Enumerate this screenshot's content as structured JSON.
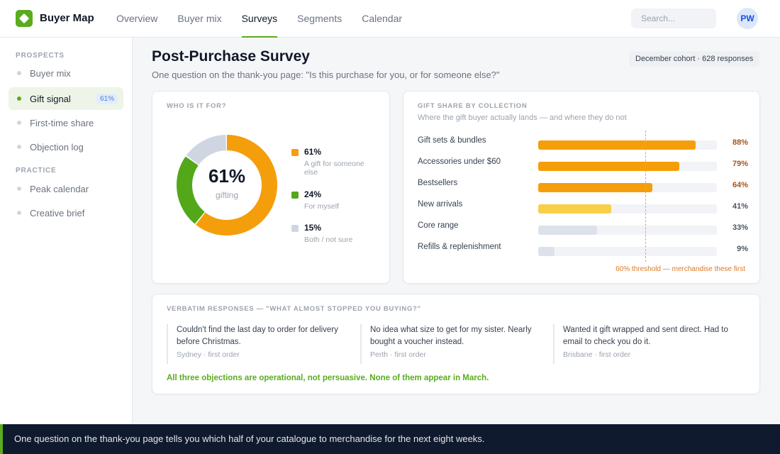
{
  "app": {
    "name": "Buyer Map",
    "logo_icon": "diamond-icon",
    "accent": "#5aac1e"
  },
  "nav": {
    "items": [
      "Overview",
      "Buyer mix",
      "Surveys",
      "Segments",
      "Calendar"
    ],
    "active": "Surveys"
  },
  "search": {
    "placeholder": "Search..."
  },
  "user": {
    "initials": "PW"
  },
  "sidebar": {
    "sections": [
      {
        "label": "PROSPECTS",
        "items": [
          {
            "label": "Buyer mix"
          },
          {
            "label": "Gift signal",
            "badge": "61%",
            "active": true
          },
          {
            "label": "First-time share"
          },
          {
            "label": "Objection log"
          }
        ]
      },
      {
        "label": "PRACTICE",
        "items": [
          {
            "label": "Peak calendar"
          },
          {
            "label": "Creative brief"
          }
        ]
      }
    ]
  },
  "header": {
    "title": "Post-Purchase Survey",
    "subtitle": "One question on the thank-you page: \"Is this purchase for you, or for someone else?\"",
    "cohort": "December cohort · 628 responses"
  },
  "who": {
    "label": "WHO IS IT FOR?",
    "center_value": "61%",
    "center_caption": "gifting",
    "segments": [
      {
        "pct": "61%",
        "value": 61,
        "desc": "A gift for someone else",
        "color": "#f59e0b"
      },
      {
        "pct": "24%",
        "value": 24,
        "desc": "For myself",
        "color": "#52a819"
      },
      {
        "pct": "15%",
        "value": 15,
        "desc": "Both / not sure",
        "color": "#cfd6e2"
      }
    ]
  },
  "share": {
    "label": "GIFT SHARE BY COLLECTION",
    "subtitle": "Where the gift buyer actually lands — and where they do not",
    "threshold": 60,
    "threshold_label": "60% threshold — merchandise these first",
    "rows": [
      {
        "name": "Gift sets & bundles",
        "value": 88,
        "label": "88%",
        "color": "#f59e0b",
        "hot": true
      },
      {
        "name": "Accessories under $60",
        "value": 79,
        "label": "79%",
        "color": "#f59e0b",
        "hot": true
      },
      {
        "name": "Bestsellers",
        "value": 64,
        "label": "64%",
        "color": "#f59e0b",
        "hot": true
      },
      {
        "name": "New arrivals",
        "value": 41,
        "label": "41%",
        "color": "#f8cf4a",
        "hot": false
      },
      {
        "name": "Core range",
        "value": 33,
        "label": "33%",
        "color": "#dde2ea",
        "hot": false
      },
      {
        "name": "Refills & replenishment",
        "value": 9,
        "label": "9%",
        "color": "#dde2ea",
        "hot": false
      }
    ]
  },
  "verbatim": {
    "label": "VERBATIM RESPONSES — \"WHAT ALMOST STOPPED YOU BUYING?\"",
    "quotes": [
      {
        "text": "Couldn't find the last day to order for delivery before Christmas.",
        "meta": "Sydney · first order"
      },
      {
        "text": "No idea what size to get for my sister. Nearly bought a voucher instead.",
        "meta": "Perth · first order"
      },
      {
        "text": "Wanted it gift wrapped and sent direct. Had to email to check you do it.",
        "meta": "Brisbane · first order"
      }
    ],
    "note": "All three objections are operational, not persuasive. None of them appear in March."
  },
  "footer": {
    "text": "One question on the thank-you page tells you which half of your catalogue to merchandise for the next eight weeks."
  }
}
